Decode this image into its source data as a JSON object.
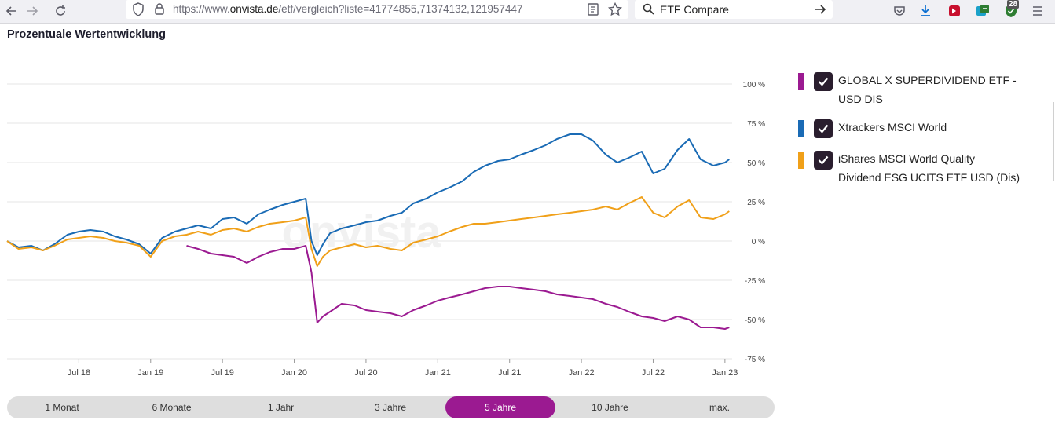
{
  "browser": {
    "url_prefix": "https://www.",
    "url_domain": "onvista.de",
    "url_path": "/etf/vergleich?liste=41774855,71374132,121957447",
    "search_text": "ETF Compare",
    "extension_badge": "28"
  },
  "page": {
    "title": "Prozentuale Wertentwicklung",
    "watermark": "onvista"
  },
  "legend": [
    {
      "label_line1": "GLOBAL X SUPERDIVIDEND ETF -",
      "label_line2": "USD DIS",
      "color": "#9b1a91"
    },
    {
      "label_line1": "Xtrackers MSCI World",
      "label_line2": "",
      "color": "#1a6bb5"
    },
    {
      "label_line1": "iShares MSCI World Quality",
      "label_line2": "Dividend ESG UCITS ETF USD (Dis)",
      "color": "#f0a019"
    }
  ],
  "ranges": [
    {
      "label": "1 Monat",
      "active": false
    },
    {
      "label": "6 Monate",
      "active": false
    },
    {
      "label": "1 Jahr",
      "active": false
    },
    {
      "label": "3 Jahre",
      "active": false
    },
    {
      "label": "5 Jahre",
      "active": true
    },
    {
      "label": "10 Jahre",
      "active": false
    },
    {
      "label": "max.",
      "active": false
    }
  ],
  "chart_data": {
    "type": "line",
    "title": "Prozentuale Wertentwicklung",
    "xlabel": "",
    "ylabel": "",
    "ylim": [
      -75,
      100
    ],
    "xlim": [
      2018.0,
      2023.05
    ],
    "y_ticks": [
      100,
      75,
      50,
      25,
      0,
      -25,
      -50,
      -75
    ],
    "y_tick_labels": [
      "100 %",
      "75 %",
      "50 %",
      "25 %",
      "0 %",
      "-25 %",
      "-50 %",
      "-75 %"
    ],
    "x_ticks": [
      2018.5,
      2019.0,
      2019.5,
      2020.0,
      2020.5,
      2021.0,
      2021.5,
      2022.0,
      2022.5,
      2023.0
    ],
    "x_tick_labels": [
      "Jul 18",
      "Jan 19",
      "Jul 19",
      "Jan 20",
      "Jul 20",
      "Jan 21",
      "Jul 21",
      "Jan 22",
      "Jul 22",
      "Jan 23"
    ],
    "series": [
      {
        "name": "Xtrackers MSCI World",
        "color": "#1a6bb5",
        "x": [
          2018.0,
          2018.08,
          2018.17,
          2018.25,
          2018.33,
          2018.42,
          2018.5,
          2018.58,
          2018.67,
          2018.75,
          2018.83,
          2018.92,
          2019.0,
          2019.08,
          2019.17,
          2019.25,
          2019.33,
          2019.42,
          2019.5,
          2019.58,
          2019.67,
          2019.75,
          2019.83,
          2019.92,
          2020.0,
          2020.08,
          2020.12,
          2020.16,
          2020.2,
          2020.25,
          2020.33,
          2020.42,
          2020.5,
          2020.58,
          2020.67,
          2020.75,
          2020.83,
          2020.92,
          2021.0,
          2021.08,
          2021.17,
          2021.25,
          2021.33,
          2021.42,
          2021.5,
          2021.58,
          2021.67,
          2021.75,
          2021.83,
          2021.92,
          2022.0,
          2022.08,
          2022.17,
          2022.25,
          2022.33,
          2022.42,
          2022.5,
          2022.58,
          2022.67,
          2022.75,
          2022.83,
          2022.92,
          2023.0,
          2023.03
        ],
        "y": [
          0,
          -4,
          -3,
          -6,
          -2,
          4,
          6,
          7,
          6,
          3,
          1,
          -2,
          -8,
          2,
          6,
          8,
          10,
          8,
          14,
          15,
          11,
          17,
          20,
          23,
          25,
          27,
          0,
          -9,
          -2,
          5,
          8,
          10,
          12,
          13,
          16,
          18,
          24,
          27,
          31,
          34,
          38,
          44,
          48,
          51,
          52,
          55,
          58,
          61,
          65,
          68,
          68,
          64,
          55,
          50,
          53,
          57,
          43,
          46,
          58,
          65,
          52,
          48,
          50,
          52
        ]
      },
      {
        "name": "iShares MSCI World Quality Dividend ESG UCITS ETF USD (Dis)",
        "color": "#f0a019",
        "x": [
          2018.0,
          2018.08,
          2018.17,
          2018.25,
          2018.33,
          2018.42,
          2018.5,
          2018.58,
          2018.67,
          2018.75,
          2018.83,
          2018.92,
          2019.0,
          2019.08,
          2019.17,
          2019.25,
          2019.33,
          2019.42,
          2019.5,
          2019.58,
          2019.67,
          2019.75,
          2019.83,
          2019.92,
          2020.0,
          2020.08,
          2020.12,
          2020.16,
          2020.2,
          2020.25,
          2020.33,
          2020.42,
          2020.5,
          2020.58,
          2020.67,
          2020.75,
          2020.83,
          2020.92,
          2021.0,
          2021.08,
          2021.17,
          2021.25,
          2021.33,
          2021.42,
          2021.5,
          2021.58,
          2021.67,
          2021.75,
          2021.83,
          2021.92,
          2022.0,
          2022.08,
          2022.17,
          2022.25,
          2022.33,
          2022.42,
          2022.5,
          2022.58,
          2022.67,
          2022.75,
          2022.83,
          2022.92,
          2023.0,
          2023.03
        ],
        "y": [
          0,
          -5,
          -4,
          -6,
          -3,
          1,
          2,
          3,
          2,
          0,
          -1,
          -3,
          -10,
          0,
          3,
          4,
          6,
          4,
          7,
          8,
          6,
          9,
          11,
          12,
          13,
          15,
          -5,
          -16,
          -10,
          -6,
          -4,
          -2,
          -4,
          -3,
          -5,
          -6,
          -1,
          1,
          3,
          6,
          9,
          11,
          11,
          12,
          13,
          14,
          15,
          16,
          17,
          18,
          19,
          20,
          22,
          20,
          24,
          28,
          18,
          15,
          22,
          26,
          15,
          14,
          17,
          19
        ]
      },
      {
        "name": "GLOBAL X SUPERDIVIDEND ETF - USD DIS",
        "color": "#9b1a91",
        "x": [
          2019.25,
          2019.33,
          2019.42,
          2019.5,
          2019.58,
          2019.67,
          2019.75,
          2019.83,
          2019.92,
          2020.0,
          2020.08,
          2020.12,
          2020.16,
          2020.2,
          2020.25,
          2020.33,
          2020.42,
          2020.5,
          2020.58,
          2020.67,
          2020.75,
          2020.83,
          2020.92,
          2021.0,
          2021.08,
          2021.17,
          2021.25,
          2021.33,
          2021.42,
          2021.5,
          2021.58,
          2021.67,
          2021.75,
          2021.83,
          2021.92,
          2022.0,
          2022.08,
          2022.17,
          2022.25,
          2022.33,
          2022.42,
          2022.5,
          2022.58,
          2022.67,
          2022.75,
          2022.83,
          2022.92,
          2023.0,
          2023.03
        ],
        "y": [
          -3,
          -5,
          -8,
          -9,
          -10,
          -14,
          -10,
          -7,
          -5,
          -5,
          -3,
          -20,
          -52,
          -48,
          -45,
          -40,
          -41,
          -44,
          -45,
          -46,
          -48,
          -44,
          -41,
          -38,
          -36,
          -34,
          -32,
          -30,
          -29,
          -29,
          -30,
          -31,
          -32,
          -34,
          -35,
          -36,
          -37,
          -40,
          -42,
          -45,
          -48,
          -49,
          -51,
          -48,
          -50,
          -55,
          -55,
          -56,
          -55
        ]
      }
    ]
  }
}
